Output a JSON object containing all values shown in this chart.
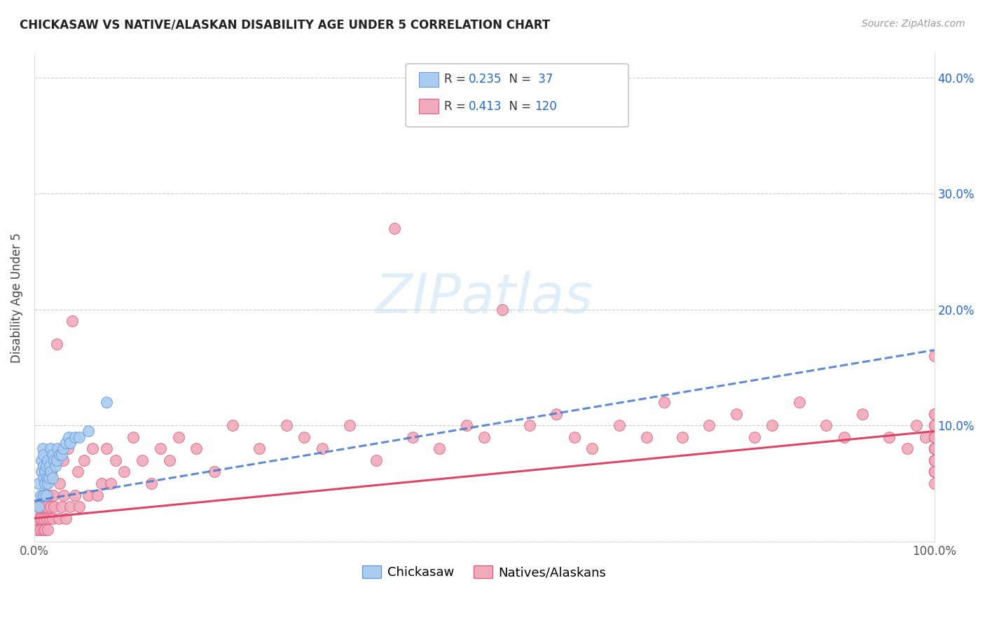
{
  "title": "CHICKASAW VS NATIVE/ALASKAN DISABILITY AGE UNDER 5 CORRELATION CHART",
  "source": "Source: ZipAtlas.com",
  "ylabel": "Disability Age Under 5",
  "xlabel": "",
  "xlim": [
    0.0,
    1.0
  ],
  "ylim": [
    0.0,
    0.42
  ],
  "xticks": [
    0.0,
    0.2,
    0.4,
    0.6,
    0.8,
    1.0
  ],
  "xtick_labels": [
    "0.0%",
    "",
    "",
    "",
    "",
    "100.0%"
  ],
  "yticks": [
    0.0,
    0.1,
    0.2,
    0.3,
    0.4
  ],
  "ytick_labels_right": [
    "",
    "10.0%",
    "20.0%",
    "30.0%",
    "40.0%"
  ],
  "chickasaw_color": "#aaccf0",
  "chickasaw_edge_color": "#6699dd",
  "native_color": "#f0aabb",
  "native_edge_color": "#e06080",
  "chickasaw_line_color": "#4477cc",
  "native_line_color": "#dd4466",
  "watermark_color": "#cce4f5",
  "R_chickasaw": 0.235,
  "N_chickasaw": 37,
  "R_native": 0.413,
  "N_native": 120,
  "legend_blue": "#2266cc",
  "chickasaw_x": [
    0.005,
    0.005,
    0.007,
    0.008,
    0.008,
    0.009,
    0.01,
    0.01,
    0.01,
    0.01,
    0.012,
    0.012,
    0.013,
    0.013,
    0.014,
    0.015,
    0.015,
    0.016,
    0.017,
    0.018,
    0.018,
    0.02,
    0.02,
    0.022,
    0.023,
    0.025,
    0.026,
    0.028,
    0.03,
    0.032,
    0.035,
    0.038,
    0.04,
    0.045,
    0.05,
    0.06,
    0.08
  ],
  "chickasaw_y": [
    0.03,
    0.05,
    0.04,
    0.06,
    0.07,
    0.08,
    0.04,
    0.055,
    0.065,
    0.075,
    0.05,
    0.06,
    0.04,
    0.065,
    0.055,
    0.05,
    0.07,
    0.055,
    0.065,
    0.06,
    0.08,
    0.055,
    0.075,
    0.07,
    0.065,
    0.07,
    0.08,
    0.075,
    0.075,
    0.08,
    0.085,
    0.09,
    0.085,
    0.09,
    0.09,
    0.095,
    0.12
  ],
  "native_x": [
    0.002,
    0.003,
    0.004,
    0.005,
    0.006,
    0.007,
    0.007,
    0.008,
    0.009,
    0.01,
    0.01,
    0.011,
    0.012,
    0.013,
    0.013,
    0.014,
    0.015,
    0.016,
    0.017,
    0.018,
    0.019,
    0.02,
    0.021,
    0.022,
    0.025,
    0.027,
    0.028,
    0.03,
    0.032,
    0.033,
    0.035,
    0.037,
    0.04,
    0.042,
    0.045,
    0.048,
    0.05,
    0.055,
    0.06,
    0.065,
    0.07,
    0.075,
    0.08,
    0.085,
    0.09,
    0.1,
    0.11,
    0.12,
    0.13,
    0.14,
    0.15,
    0.16,
    0.18,
    0.2,
    0.22,
    0.25,
    0.28,
    0.3,
    0.32,
    0.35,
    0.38,
    0.4,
    0.42,
    0.45,
    0.48,
    0.5,
    0.52,
    0.55,
    0.58,
    0.6,
    0.62,
    0.65,
    0.68,
    0.7,
    0.72,
    0.75,
    0.78,
    0.8,
    0.82,
    0.85,
    0.88,
    0.9,
    0.92,
    0.95,
    0.97,
    0.98,
    0.99,
    1.0,
    1.0,
    1.0,
    1.0,
    1.0,
    1.0,
    1.0,
    1.0,
    1.0,
    1.0,
    1.0,
    1.0,
    1.0,
    1.0,
    1.0,
    1.0,
    1.0,
    1.0,
    1.0,
    1.0,
    1.0,
    1.0,
    1.0,
    1.0,
    1.0,
    1.0,
    1.0,
    1.0,
    1.0,
    1.0,
    1.0,
    1.0,
    1.0
  ],
  "native_y": [
    0.02,
    0.01,
    0.03,
    0.01,
    0.02,
    0.01,
    0.03,
    0.02,
    0.04,
    0.01,
    0.03,
    0.02,
    0.01,
    0.03,
    0.05,
    0.02,
    0.01,
    0.04,
    0.02,
    0.03,
    0.06,
    0.02,
    0.04,
    0.03,
    0.17,
    0.02,
    0.05,
    0.03,
    0.07,
    0.04,
    0.02,
    0.08,
    0.03,
    0.19,
    0.04,
    0.06,
    0.03,
    0.07,
    0.04,
    0.08,
    0.04,
    0.05,
    0.08,
    0.05,
    0.07,
    0.06,
    0.09,
    0.07,
    0.05,
    0.08,
    0.07,
    0.09,
    0.08,
    0.06,
    0.1,
    0.08,
    0.1,
    0.09,
    0.08,
    0.1,
    0.07,
    0.27,
    0.09,
    0.08,
    0.1,
    0.09,
    0.2,
    0.1,
    0.11,
    0.09,
    0.08,
    0.1,
    0.09,
    0.12,
    0.09,
    0.1,
    0.11,
    0.09,
    0.1,
    0.12,
    0.1,
    0.09,
    0.11,
    0.09,
    0.08,
    0.1,
    0.09,
    0.08,
    0.06,
    0.09,
    0.1,
    0.08,
    0.05,
    0.07,
    0.09,
    0.06,
    0.1,
    0.08,
    0.07,
    0.09,
    0.06,
    0.08,
    0.1,
    0.07,
    0.09,
    0.08,
    0.06,
    0.1,
    0.07,
    0.09,
    0.11,
    0.08,
    0.06,
    0.09,
    0.1,
    0.07,
    0.08,
    0.11,
    0.09,
    0.16
  ]
}
